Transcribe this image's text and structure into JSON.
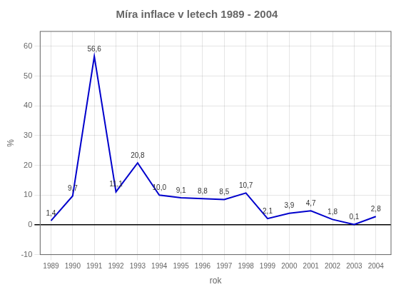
{
  "chart_data": {
    "type": "line",
    "title": "Míra inflace v letech 1989 - 2004",
    "x_label": "rok",
    "y_label": "%",
    "x": [
      1989,
      1990,
      1991,
      1992,
      1993,
      1994,
      1995,
      1996,
      1997,
      1998,
      1999,
      2000,
      2001,
      2002,
      2003,
      2004
    ],
    "values": [
      1.4,
      9.7,
      56.6,
      11.1,
      20.8,
      10.0,
      9.1,
      8.8,
      8.5,
      10.7,
      2.1,
      3.9,
      4.7,
      1.8,
      0.1,
      2.8
    ],
    "value_labels": [
      "1,4",
      "9,7",
      "56,6",
      "11,1",
      "20,8",
      "10,0",
      "9,1",
      "8,8",
      "8,5",
      "10,7",
      "2,1",
      "3,9",
      "4,7",
      "1,8",
      "0,1",
      "2,8"
    ],
    "data_labels": true,
    "color": "#0000cc",
    "xlim": [
      1988.5,
      2004.7
    ],
    "xticks": [
      1989,
      1990,
      1991,
      1992,
      1993,
      1994,
      1995,
      1996,
      1997,
      1998,
      1999,
      2000,
      2001,
      2002,
      2003,
      2004
    ],
    "ylim": [
      -10,
      65
    ],
    "yticks": [
      -10,
      0,
      10,
      20,
      30,
      40,
      50,
      60
    ],
    "grid": true
  }
}
